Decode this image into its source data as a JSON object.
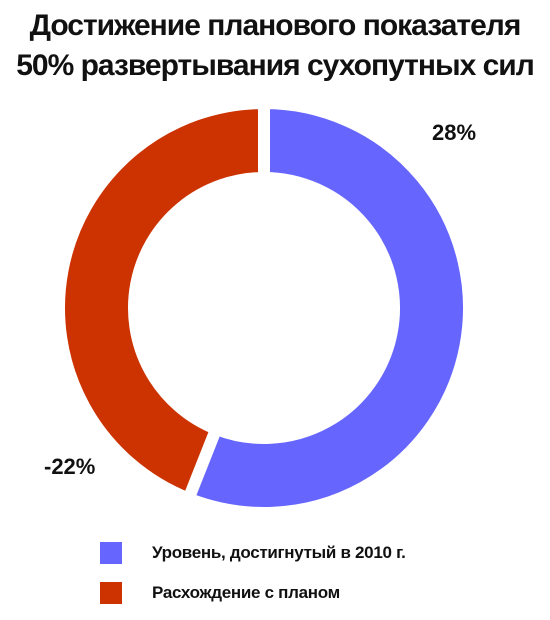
{
  "chart_data": {
    "type": "pie",
    "title": "Достижение планового показателя",
    "subtitle": "50% развертывания сухопутных сил",
    "categories": [
      "Уровень, достигнутый в 2010 г.",
      "Расхождение с планом"
    ],
    "values": [
      28,
      22
    ],
    "data_labels": [
      "28%",
      "-22%"
    ],
    "colors": [
      "#6666FF",
      "#CC3300"
    ],
    "donut": true,
    "legend_position": "bottom"
  }
}
